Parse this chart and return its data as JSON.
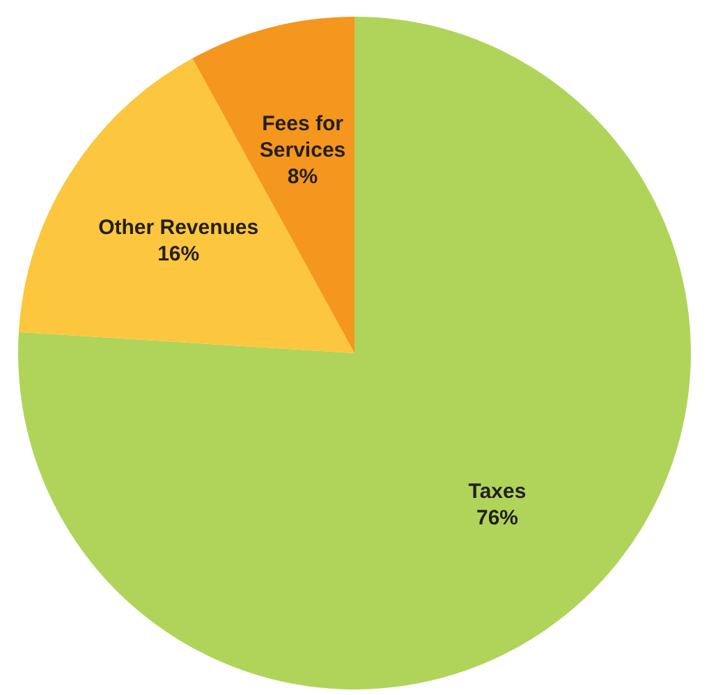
{
  "chart_data": {
    "type": "pie",
    "categories": [
      "Taxes",
      "Other Revenues",
      "Fees for Services"
    ],
    "values": [
      76,
      16,
      8
    ],
    "colors": [
      "#b0d45a",
      "#fcc63e",
      "#f5961f"
    ],
    "value_labels": [
      "76%",
      "16%",
      "8%"
    ]
  }
}
